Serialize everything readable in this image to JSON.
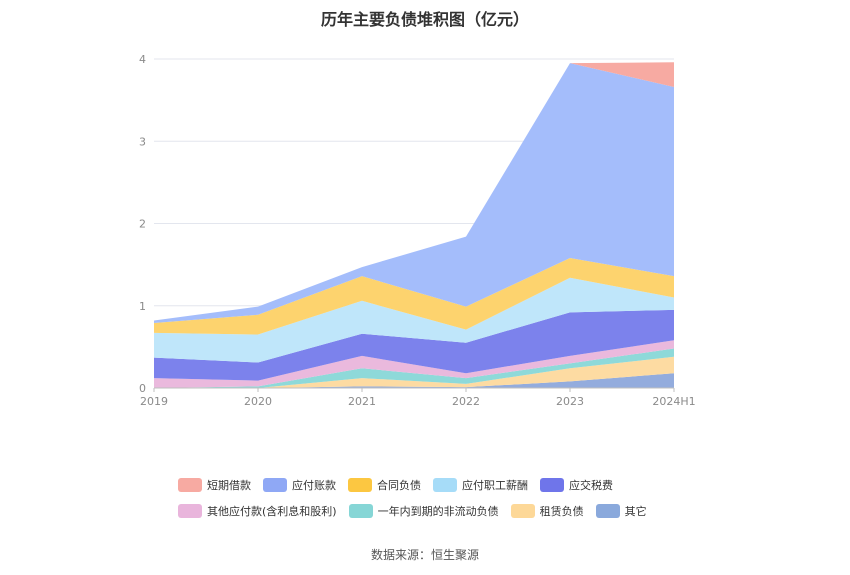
{
  "title": "历年主要负债堆积图（亿元）",
  "source": "数据来源：恒生聚源",
  "chart_data": {
    "type": "area",
    "stacked": true,
    "categories": [
      "2019",
      "2020",
      "2021",
      "2022",
      "2023",
      "2024H1"
    ],
    "ylim": [
      0,
      4
    ],
    "yticks": [
      "0",
      "1",
      "2",
      "3",
      "4"
    ],
    "grid": true,
    "legend_position": "bottom",
    "series": [
      {
        "name": "其它",
        "color": "#93acdd",
        "values": [
          0.0,
          0.0,
          0.02,
          0.01,
          0.08,
          0.18
        ]
      },
      {
        "name": "租赁负债",
        "color": "#fddba2",
        "values": [
          0.0,
          0.0,
          0.1,
          0.04,
          0.16,
          0.2
        ]
      },
      {
        "name": "一年内到期的非流动负债",
        "color": "#8ed9d9",
        "values": [
          0.0,
          0.02,
          0.12,
          0.07,
          0.06,
          0.1
        ]
      },
      {
        "name": "其他应付款(含利息和股利)",
        "color": "#eab9dd",
        "values": [
          0.12,
          0.07,
          0.15,
          0.06,
          0.09,
          0.1
        ]
      },
      {
        "name": "应交税费",
        "color": "#7c82ec",
        "values": [
          0.25,
          0.22,
          0.27,
          0.37,
          0.53,
          0.37
        ]
      },
      {
        "name": "应付职工薪酬",
        "color": "#bfe6fa",
        "values": [
          0.3,
          0.34,
          0.4,
          0.16,
          0.42,
          0.15
        ]
      },
      {
        "name": "合同负债",
        "color": "#fdd36e",
        "values": [
          0.12,
          0.24,
          0.3,
          0.28,
          0.24,
          0.26
        ]
      },
      {
        "name": "应付账款",
        "color": "#a4bdfb",
        "values": [
          0.03,
          0.1,
          0.11,
          0.85,
          2.37,
          2.3
        ]
      },
      {
        "name": "短期借款",
        "color": "#f7aaa2",
        "values": [
          0.0,
          0.0,
          0.0,
          0.0,
          0.0,
          0.3
        ]
      }
    ]
  },
  "legend": {
    "rows": [
      [
        {
          "label": "短期借款",
          "color": "#f7aaa2"
        },
        {
          "label": "应付账款",
          "color": "#8fa8f5"
        },
        {
          "label": "合同负债",
          "color": "#fcc741"
        },
        {
          "label": "应付职工薪酬",
          "color": "#a6dcf8"
        },
        {
          "label": "应交税费",
          "color": "#6f75ea"
        }
      ],
      [
        {
          "label": "其他应付款(含利息和股利)",
          "color": "#e9b5dc"
        },
        {
          "label": "一年内到期的非流动负债",
          "color": "#86d6d6"
        },
        {
          "label": "租赁负债",
          "color": "#fdd898"
        },
        {
          "label": "其它",
          "color": "#8aa9dc"
        }
      ]
    ]
  }
}
